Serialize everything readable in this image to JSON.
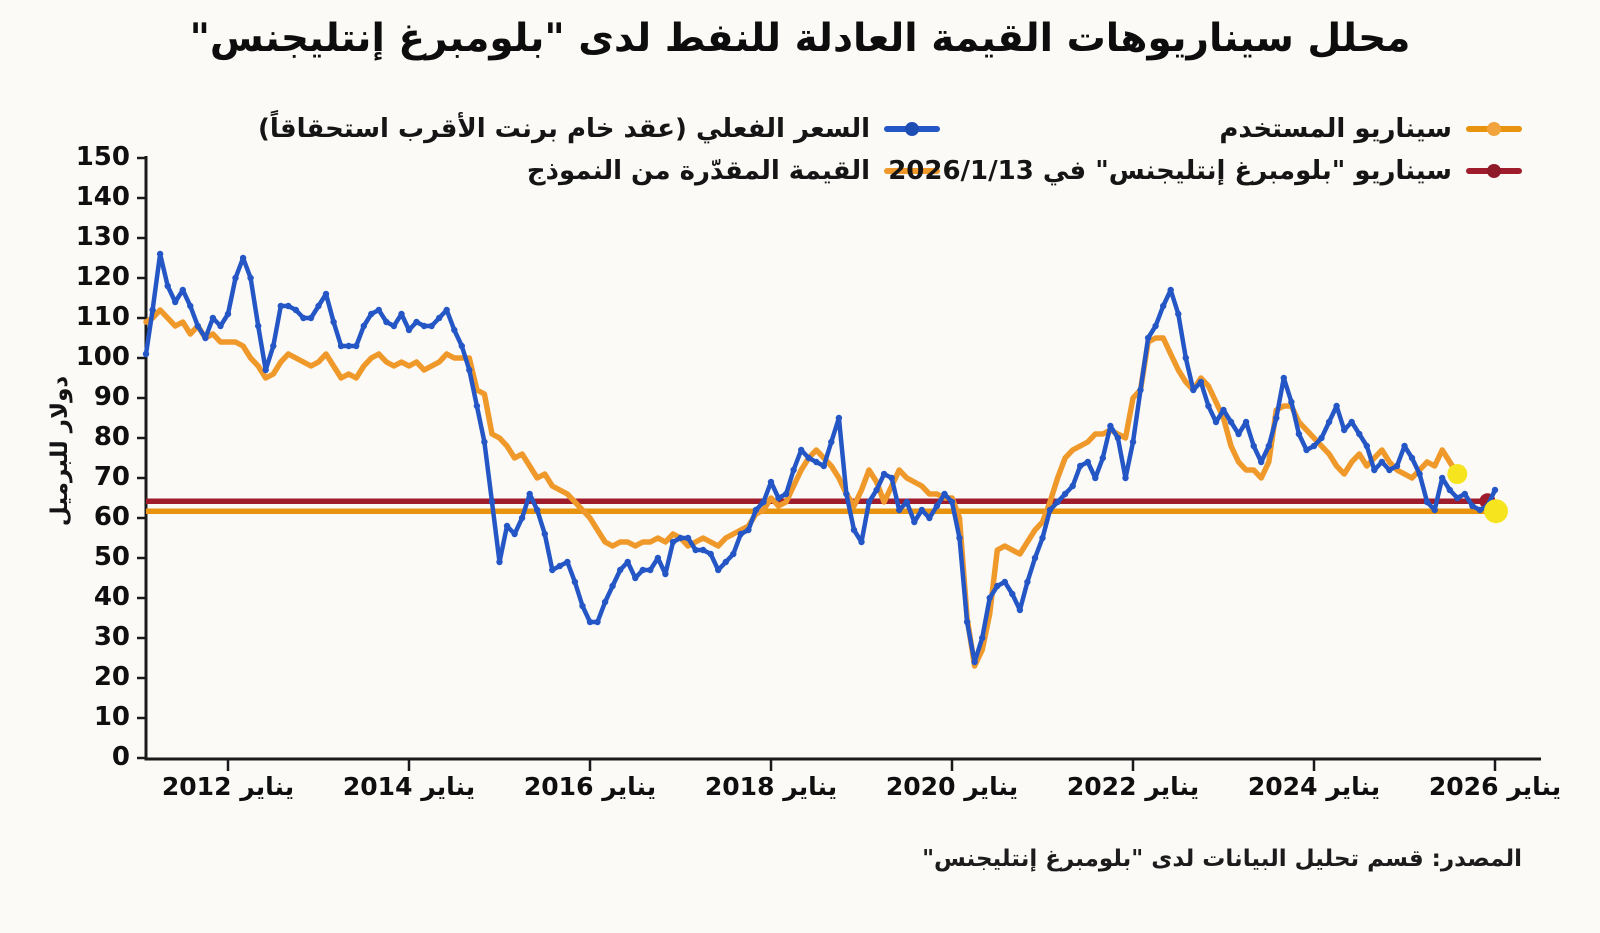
{
  "title": "محلل سيناريوهات القيمة العادلة للنفط لدى \"بلومبرغ إنتليجنس\"",
  "source": "المصدر: قسم تحليل البيانات لدى \"بلومبرغ إنتليجنس\"",
  "colors": {
    "actual": "#2457C5",
    "model": "#F0992B",
    "user_line": "#E8940E",
    "user_dot": "#F6E41F",
    "bi": "#9E1C2C",
    "axis": "#1A1A1A",
    "background": "#FBFAF7",
    "text": "#111111"
  },
  "chart_data": {
    "type": "line",
    "title": "محلل سيناريوهات القيمة العادلة للنفط لدى \"بلومبرغ إنتليجنس\"",
    "ylabel": "دولار للبرميل",
    "ylim": [
      0,
      150
    ],
    "grid": false,
    "y_ticks": [
      0,
      10,
      20,
      30,
      40,
      50,
      60,
      70,
      80,
      90,
      100,
      110,
      120,
      130,
      140,
      150
    ],
    "x_ticks": [
      {
        "year": 2012,
        "label": "يناير 2012"
      },
      {
        "year": 2014,
        "label": "يناير 2014"
      },
      {
        "year": 2016,
        "label": "يناير 2016"
      },
      {
        "year": 2018,
        "label": "يناير 2018"
      },
      {
        "year": 2020,
        "label": "يناير 2020"
      },
      {
        "year": 2022,
        "label": "يناير 2022"
      },
      {
        "year": 2024,
        "label": "يناير 2024"
      },
      {
        "year": 2026,
        "label": "يناير 2026"
      }
    ],
    "frequency": "monthly",
    "unit": "دولار للبرميل",
    "series": [
      {
        "id": "actual",
        "name": "السعر الفعلي (عقد خام برنت الأقرب استحقاقاً)",
        "start": "2011-02",
        "values": [
          101,
          112,
          126,
          118,
          114,
          117,
          113,
          108,
          105,
          110,
          108,
          111,
          120,
          125,
          120,
          108,
          97,
          103,
          113,
          113,
          112,
          110,
          110,
          113,
          116,
          109,
          103,
          103,
          103,
          108,
          111,
          112,
          109,
          108,
          111,
          107,
          109,
          108,
          108,
          110,
          112,
          107,
          103,
          97,
          88,
          79,
          64,
          49,
          58,
          56,
          60,
          66,
          62,
          56,
          47,
          48,
          49,
          44,
          38,
          34,
          34,
          39,
          43,
          47,
          49,
          45,
          47,
          47,
          50,
          46,
          54,
          55,
          55,
          52,
          52,
          51,
          47,
          49,
          51,
          56,
          57,
          62,
          64,
          69,
          65,
          66,
          72,
          77,
          75,
          74,
          73,
          79,
          85,
          66,
          57,
          54,
          64,
          67,
          71,
          70,
          62,
          64,
          59,
          62,
          60,
          63,
          66,
          64,
          55,
          34,
          24,
          30,
          40,
          43,
          44,
          41,
          37,
          44,
          50,
          55,
          62,
          64,
          66,
          68,
          73,
          74,
          70,
          75,
          83,
          80,
          70,
          79,
          92,
          105,
          108,
          113,
          117,
          111,
          100,
          92,
          94,
          88,
          84,
          87,
          84,
          81,
          84,
          78,
          74,
          78,
          85,
          95,
          89,
          81,
          77,
          78,
          80,
          84,
          88,
          82,
          84,
          81,
          78,
          72,
          74,
          72,
          73,
          78,
          75,
          71,
          64,
          62,
          70,
          67,
          65,
          66,
          63,
          62,
          63,
          67
        ]
      },
      {
        "id": "model",
        "name": "القيمة المقدّرة من النموذج",
        "start": "2011-02",
        "values": [
          109,
          110,
          112,
          110,
          108,
          109,
          106,
          108,
          105,
          106,
          104,
          104,
          104,
          103,
          100,
          98,
          95,
          96,
          99,
          101,
          100,
          99,
          98,
          99,
          101,
          98,
          95,
          96,
          95,
          98,
          100,
          101,
          99,
          98,
          99,
          98,
          99,
          97,
          98,
          99,
          101,
          100,
          100,
          100,
          92,
          91,
          81,
          80,
          78,
          75,
          76,
          73,
          70,
          71,
          68,
          67,
          66,
          64,
          62,
          60,
          57,
          54,
          53,
          54,
          54,
          53,
          54,
          54,
          55,
          54,
          56,
          55,
          53,
          54,
          55,
          54,
          53,
          55,
          56,
          57,
          58,
          61,
          62,
          65,
          63,
          64,
          68,
          72,
          75,
          77,
          75,
          73,
          70,
          66,
          63,
          67,
          72,
          69,
          64,
          68,
          72,
          70,
          69,
          68,
          66,
          66,
          65,
          65,
          60,
          35,
          23,
          27,
          36,
          52,
          53,
          52,
          51,
          54,
          57,
          59,
          64,
          70,
          75,
          77,
          78,
          79,
          81,
          81,
          82,
          81,
          80,
          90,
          92,
          104,
          105,
          105,
          101,
          97,
          94,
          92,
          95,
          93,
          89,
          85,
          78,
          74,
          72,
          72,
          70,
          74,
          87,
          88,
          88,
          84,
          82,
          80,
          78,
          76,
          73,
          71,
          74,
          76,
          73,
          75,
          77,
          74,
          72,
          71,
          70,
          72,
          74,
          73,
          77,
          74,
          71
        ]
      }
    ],
    "scenario_lines": [
      {
        "id": "bi",
        "name": "سيناريو \"بلومبرغ إنتليجنس\" في 2026/1/13",
        "value": 64.2
      },
      {
        "id": "user",
        "name": "سيناريو المستخدم",
        "value": 61.7
      }
    ],
    "markers": [
      {
        "id": "model-latest",
        "date": "2025-08",
        "value": 71,
        "r": 10
      },
      {
        "id": "bi-point",
        "date": "2025-12",
        "value": 64.2,
        "r": 8
      },
      {
        "id": "user-point",
        "date": "2026-01",
        "value": 61.7,
        "r": 12
      }
    ]
  }
}
